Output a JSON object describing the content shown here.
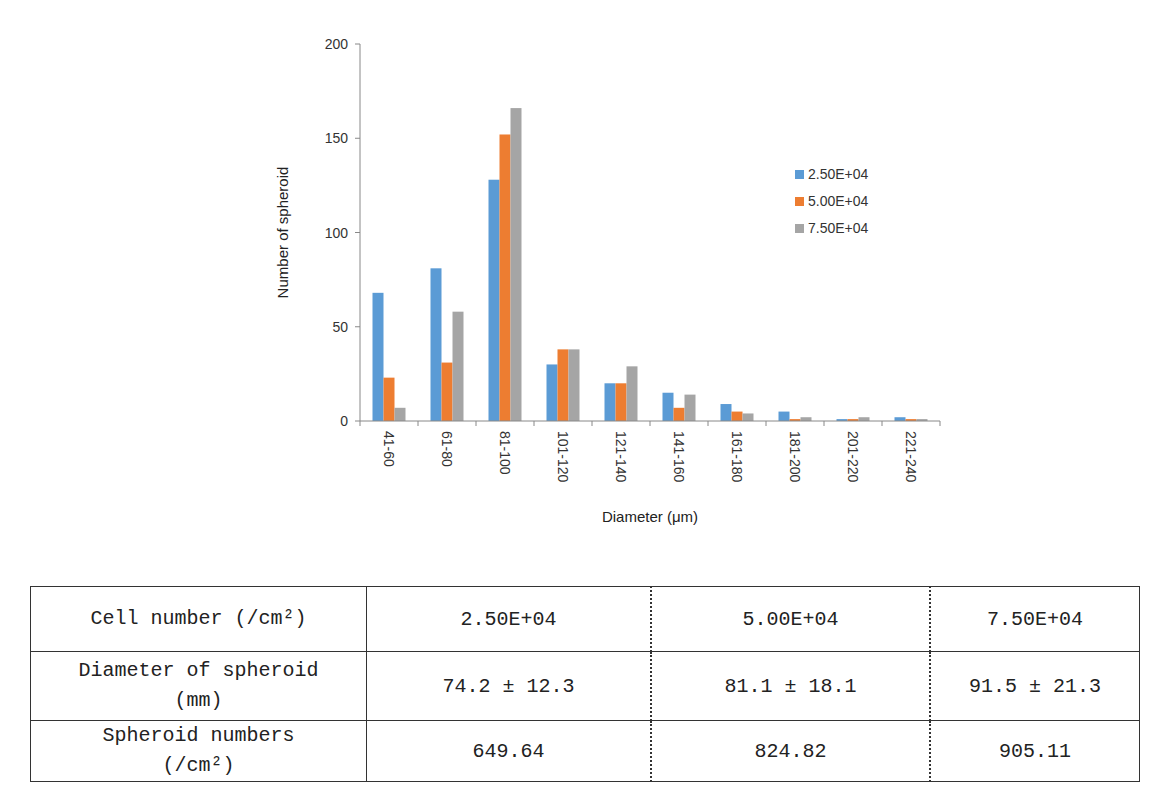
{
  "chart_data": {
    "type": "bar",
    "x_label": "Diameter (μm)",
    "y_label": "Number of spheroid",
    "categories": [
      "41-60",
      "61-80",
      "81-100",
      "101-120",
      "121-140",
      "141-160",
      "161-180",
      "181-200",
      "201-220",
      "221-240"
    ],
    "series": [
      {
        "name": "2.50E+04",
        "color": "#5b9bd5",
        "values": [
          68,
          81,
          128,
          30,
          20,
          15,
          9,
          5,
          1,
          2
        ]
      },
      {
        "name": "5.00E+04",
        "color": "#ed7d31",
        "values": [
          23,
          31,
          152,
          38,
          20,
          7,
          5,
          1,
          1,
          1
        ]
      },
      {
        "name": "7.50E+04",
        "color": "#a5a5a5",
        "values": [
          7,
          58,
          166,
          38,
          29,
          14,
          4,
          2,
          2,
          1
        ]
      }
    ],
    "ylim": [
      0,
      200
    ],
    "yticks": [
      0,
      50,
      100,
      150,
      200
    ],
    "grid": false,
    "legend": "upper right"
  },
  "table": {
    "rows": [
      [
        "Cell number (/cm²)",
        "2.50E+04",
        "5.00E+04",
        "7.50E+04"
      ],
      [
        "Diameter of spheroid (mm)",
        "74.2 ± 12.3",
        "81.1 ± 18.1",
        "91.5 ± 21.3"
      ],
      [
        "Spheroid numbers (/cm²)",
        "649.64",
        "824.82",
        "905.11"
      ]
    ]
  }
}
